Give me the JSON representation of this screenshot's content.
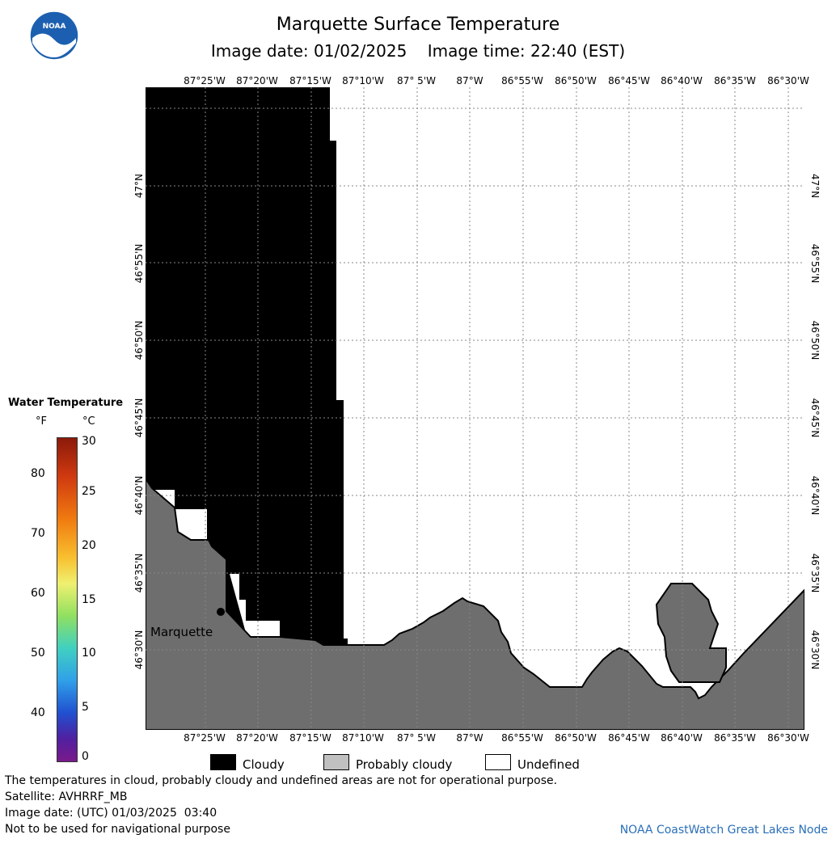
{
  "header": {
    "title": "Marquette Surface Temperature",
    "subtitle": "Image date: 01/02/2025    Image time: 22:40 (EST)"
  },
  "map": {
    "lon_labels": [
      "87°25'W",
      "87°20'W",
      "87°15'W",
      "87°10'W",
      "87° 5'W",
      "87°W",
      "86°55'W",
      "86°50'W",
      "86°45'W",
      "86°40'W",
      "86°35'W",
      "86°30'W"
    ],
    "lat_labels": [
      "47°N",
      "46°55'N",
      "46°50'N",
      "46°45'N",
      "46°40'N",
      "46°35'N",
      "46°30'N"
    ],
    "city_label": "Marquette",
    "colors": {
      "cloudy": "#000000",
      "land": "#6e6e6e",
      "undefined": "#ffffff",
      "grid": "#888888"
    }
  },
  "colorbar": {
    "title": "Water Temperature",
    "unit_f": "°F",
    "unit_c": "°C",
    "f_ticks": [
      "80",
      "70",
      "60",
      "50",
      "40"
    ],
    "c_ticks": [
      "30",
      "25",
      "20",
      "15",
      "10",
      "5",
      "0"
    ]
  },
  "legend": {
    "items": [
      {
        "label": "Cloudy",
        "color": "#000000"
      },
      {
        "label": "Probably cloudy",
        "color": "#c0c0c0"
      },
      {
        "label": "Undefined",
        "color": "#ffffff"
      }
    ]
  },
  "footer": {
    "lines": [
      "The temperatures in cloud, probably cloudy and undefined areas are not for operational purpose.",
      "Satellite: AVHRRF_MB",
      "Image date: (UTC) 01/03/2025  03:40",
      "Not to be used for navigational purpose"
    ],
    "credit": "NOAA CoastWatch Great Lakes Node",
    "logo_text": "NOAA"
  }
}
